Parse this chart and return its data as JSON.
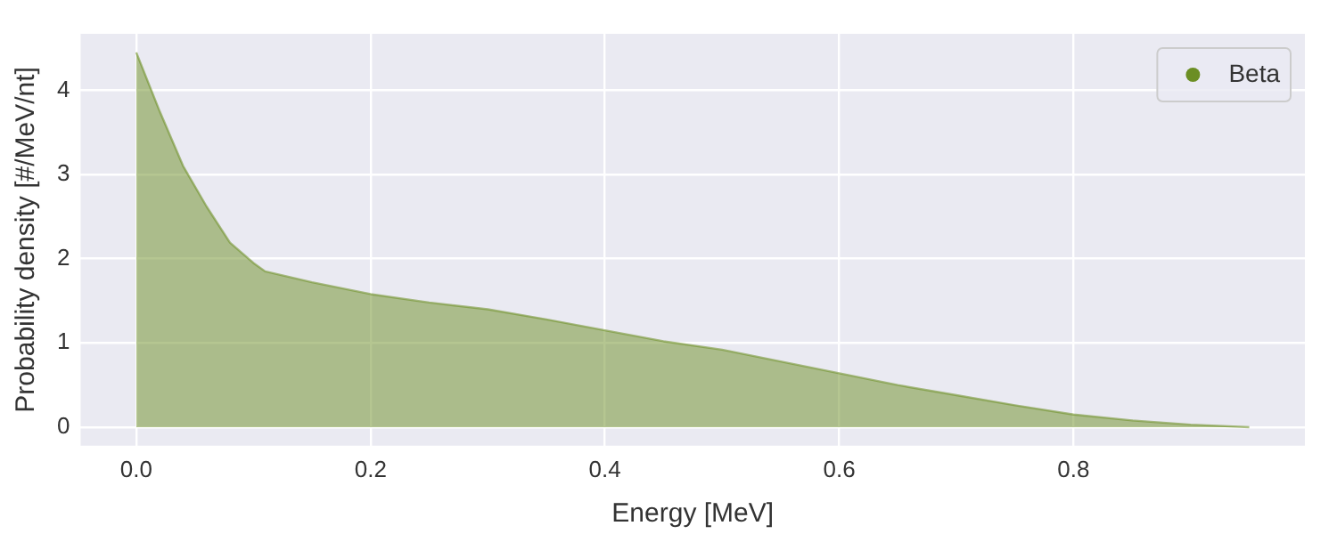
{
  "chart_data": {
    "type": "area",
    "xlabel": "Energy [MeV]",
    "ylabel": "Probability density [#/MeV/nt]",
    "x": [
      0,
      0.02,
      0.04,
      0.06,
      0.08,
      0.1,
      0.11,
      0.15,
      0.2,
      0.25,
      0.3,
      0.35,
      0.4,
      0.45,
      0.5,
      0.55,
      0.6,
      0.65,
      0.7,
      0.75,
      0.8,
      0.85,
      0.9,
      0.95
    ],
    "series": [
      {
        "name": "Beta",
        "color": "#6b8e23",
        "values": [
          4.45,
          3.75,
          3.1,
          2.62,
          2.19,
          1.95,
          1.85,
          1.72,
          1.58,
          1.48,
          1.4,
          1.28,
          1.15,
          1.02,
          0.92,
          0.78,
          0.64,
          0.5,
          0.38,
          0.26,
          0.15,
          0.08,
          0.03,
          0
        ]
      }
    ],
    "xlim": [
      -0.0475,
      0.9975
    ],
    "xticks": [
      {
        "value": 0,
        "label": "0.0"
      },
      0.2,
      0.4,
      0.6,
      0.8
    ],
    "ylim": [
      -0.22,
      4.67
    ],
    "yticks": [
      0,
      1,
      2,
      3,
      4
    ],
    "grid": true,
    "legend": "top right"
  }
}
